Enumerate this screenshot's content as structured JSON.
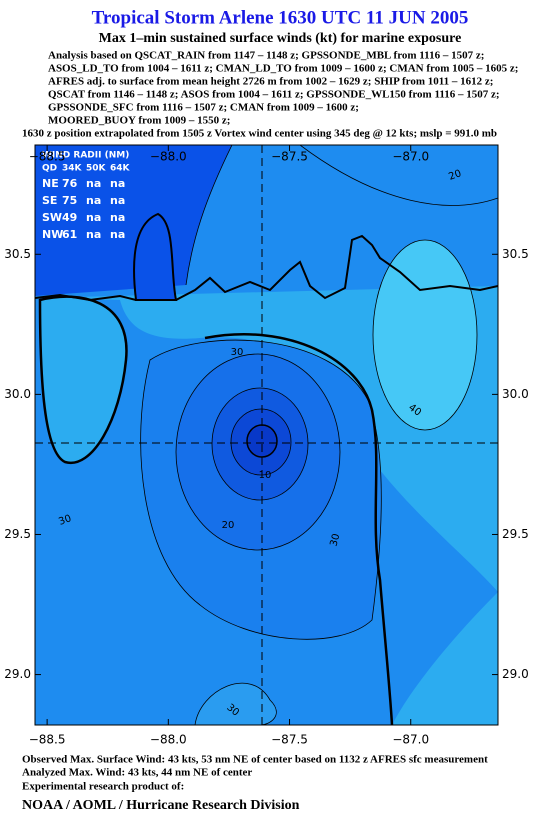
{
  "header": {
    "title": "Tropical Storm Arlene 1630 UTC 11 JUN 2005",
    "subtitle": "Max 1–min sustained surface winds (kt) for marine exposure",
    "analysis": [
      "Analysis based on  QSCAT_RAIN from 1147 – 1148 z;  GPSSONDE_MBL from 1116 – 1507 z;",
      "ASOS_LD_TO from 1004 – 1611 z;  CMAN_LD_TO from 1009 – 1600 z;  CMAN from 1005 – 1605 z;",
      "AFRES adj. to surface from mean height 2726 m from 1002 – 1629 z;  SHIP from 1011 – 1612 z;",
      "QSCAT from 1146 – 1148 z;  ASOS from 1004 – 1611 z;  GPSSONDE_WL150 from 1116 – 1507 z;",
      "GPSSONDE_SFC from 1116 – 1507 z;  CMAN from 1009 – 1600 z;",
      "MOORED_BUOY from 1009 – 1550 z;"
    ],
    "position": "1630 z position extrapolated from 1505 z Vortex wind center using 345 deg @ 12 kts; mslp = 991.0 mb"
  },
  "map": {
    "xlim": [
      -88.55,
      -86.64
    ],
    "ylim": [
      28.82,
      30.89
    ],
    "xticks": [
      {
        "value": -88.5,
        "label": "−88.5"
      },
      {
        "value": -88.0,
        "label": "−88.0"
      },
      {
        "value": -87.5,
        "label": "−87.5"
      },
      {
        "value": -87.0,
        "label": "−87.0"
      }
    ],
    "yticks": [
      {
        "value": 30.5,
        "label": "30.5"
      },
      {
        "value": 30.0,
        "label": "30.0"
      },
      {
        "value": 29.5,
        "label": "29.5"
      },
      {
        "value": 29.0,
        "label": "29.0"
      }
    ],
    "contour_labels": [
      "20",
      "30",
      "40",
      "10",
      "20",
      "30",
      "30",
      "30"
    ]
  },
  "wind_radii": {
    "title": "WIND RADII (NM)",
    "columns": [
      "QD",
      "34K",
      "50K",
      "64K"
    ],
    "rows": [
      [
        "NE",
        "76",
        "na",
        "na"
      ],
      [
        "SE",
        "75",
        "na",
        "na"
      ],
      [
        "SW",
        "49",
        "na",
        "na"
      ],
      [
        "NW",
        "61",
        "na",
        "na"
      ]
    ]
  },
  "footer": {
    "observed": "Observed Max. Surface Wind: 43 kts, 53 nm NE of center based on 1132 z AFRES sfc measurement",
    "analyzed": "Analyzed Max. Wind: 43 kts, 44 nm NE of center",
    "experimental": "Experimental research product of:",
    "org": "NOAA / AOML / Hurricane Research Division"
  }
}
